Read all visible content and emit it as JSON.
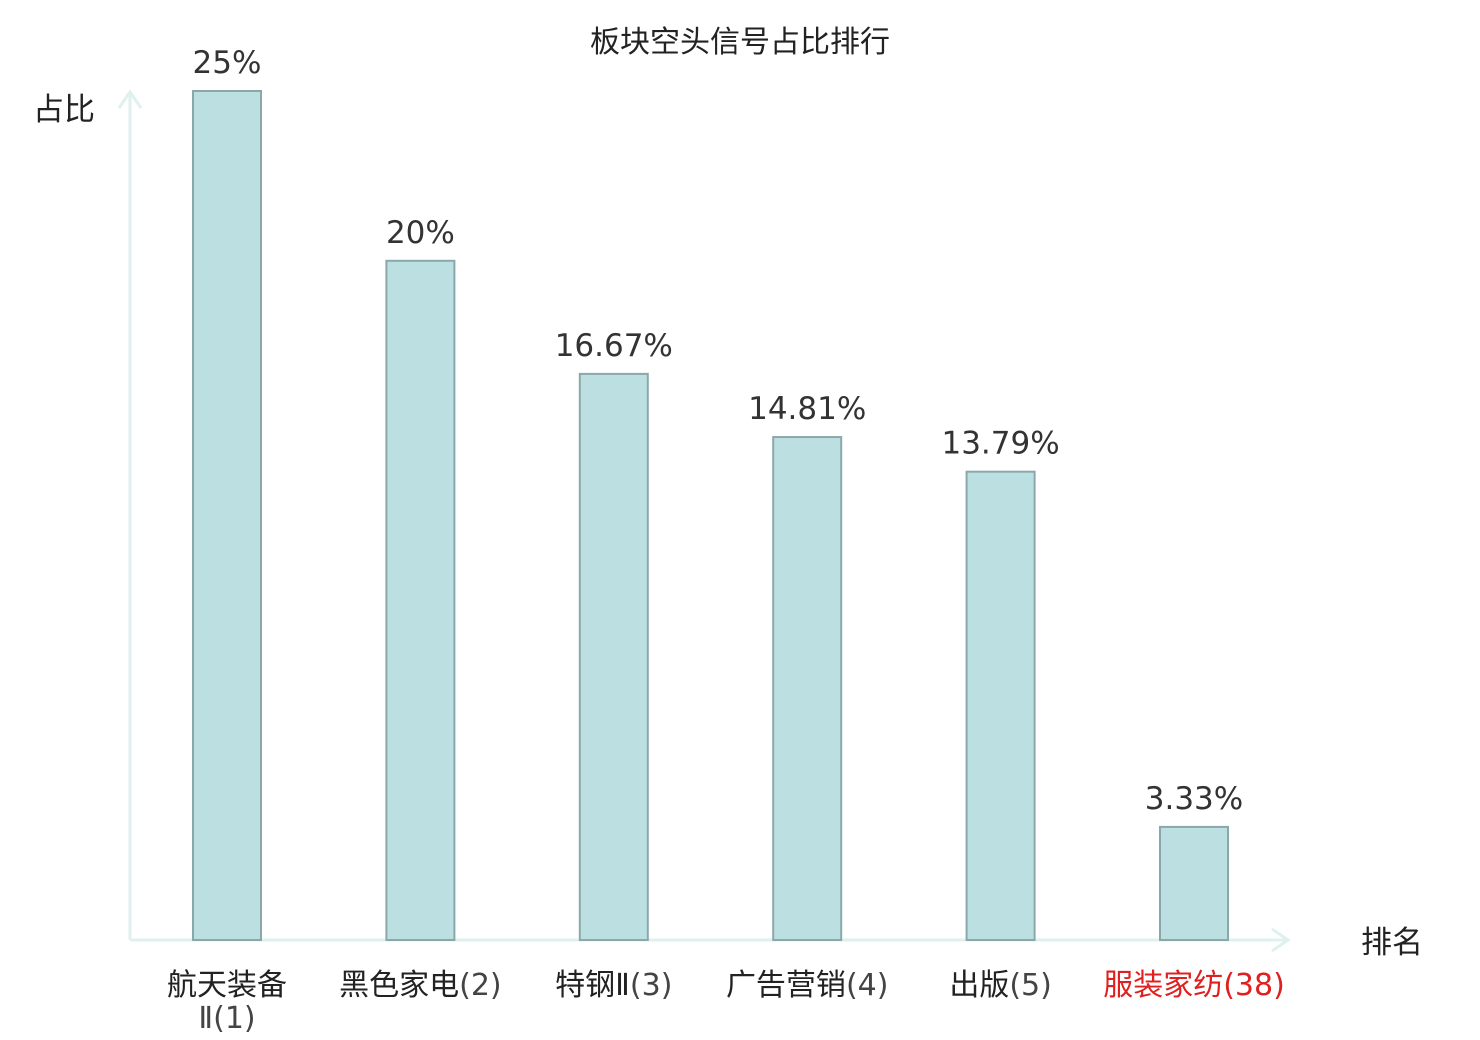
{
  "chart_data": {
    "type": "bar",
    "title": "板块空头信号占比排行",
    "xlabel": "排名",
    "ylabel": "占比",
    "ylim": [
      0,
      25
    ],
    "grid": false,
    "categories": [
      {
        "name": "航天装备Ⅱ",
        "rank": "(1)",
        "highlight": false
      },
      {
        "name": "黑色家电",
        "rank": "(2)",
        "highlight": false
      },
      {
        "name": "特钢Ⅱ",
        "rank": "(3)",
        "highlight": false
      },
      {
        "name": "广告营销",
        "rank": "(4)",
        "highlight": false
      },
      {
        "name": "出版",
        "rank": "(5)",
        "highlight": false
      },
      {
        "name": "服装家纺",
        "rank": "(38)",
        "highlight": true
      }
    ],
    "values": [
      25,
      20,
      16.67,
      14.81,
      13.79,
      3.33
    ],
    "value_labels": [
      "25%",
      "20%",
      "16.67%",
      "14.81%",
      "13.79%",
      "3.33%"
    ]
  },
  "colors": {
    "bar_fill": "#bce0e2",
    "bar_stroke": "#8aa8aa",
    "axis": "#dff1ef",
    "text": "#222222",
    "rank_text": "#444444",
    "highlight": "#e02020"
  }
}
